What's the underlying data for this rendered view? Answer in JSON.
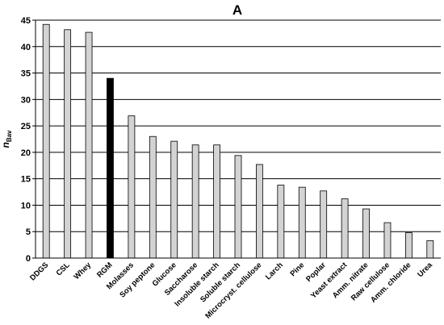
{
  "chart_data": {
    "type": "bar",
    "title": "A",
    "xlabel": "",
    "ylabel": "n",
    "ylabel_subscript": "Bav",
    "ylim": [
      0,
      45
    ],
    "yticks": [
      0,
      5,
      10,
      15,
      20,
      25,
      30,
      35,
      40,
      45
    ],
    "grid": "horizontal",
    "categories": [
      "DDGS",
      "CSL",
      "Whey",
      "RGM",
      "Molasses",
      "Soy peptone",
      "Glucose",
      "Saccharose",
      "Insoluble starch",
      "Soluble starch",
      "Microcryst. cellulose",
      "Larch",
      "Pine",
      "Poplar",
      "Yeast extract",
      "Amm. nitrate",
      "Raw cellulose",
      "Amm. chloride",
      "Urea"
    ],
    "values": [
      44.2,
      43.2,
      42.7,
      34.0,
      26.9,
      23.0,
      22.1,
      21.4,
      21.4,
      19.4,
      17.7,
      13.8,
      13.4,
      12.7,
      11.2,
      9.3,
      6.7,
      4.8,
      3.3
    ],
    "highlight_index": 3,
    "colors": {
      "bar": "#d3d3d3",
      "bar_highlight": "#000000",
      "bar_stroke": "#000000",
      "grid": "#000000",
      "axis": "#000000"
    }
  }
}
